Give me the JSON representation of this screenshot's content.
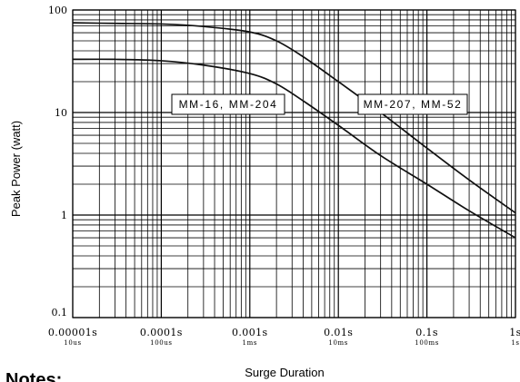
{
  "chart_data": {
    "type": "line",
    "xscale": "log",
    "yscale": "log",
    "xlim": [
      1e-05,
      1
    ],
    "ylim": [
      0.1,
      100
    ],
    "xlabel": "Surge Duration",
    "ylabel": "Peak Power (watt)",
    "grid": true,
    "x_ticks": [
      {
        "value": 1e-05,
        "label": "0.00001s",
        "sub": "10us"
      },
      {
        "value": 0.0001,
        "label": "0.0001s",
        "sub": "100us"
      },
      {
        "value": 0.001,
        "label": "0.001s",
        "sub": "1ms"
      },
      {
        "value": 0.01,
        "label": "0.01s",
        "sub": "10ms"
      },
      {
        "value": 0.1,
        "label": "0.1s",
        "sub": "100ms"
      },
      {
        "value": 1,
        "label": "1s",
        "sub": "1s"
      }
    ],
    "y_ticks": [
      {
        "value": 0.1,
        "label": "0.1"
      },
      {
        "value": 1,
        "label": "1"
      },
      {
        "value": 10,
        "label": "10"
      },
      {
        "value": 100,
        "label": "100"
      }
    ],
    "series": [
      {
        "name": "MM-207, MM-52",
        "x": [
          1e-05,
          3e-05,
          0.0001,
          0.0003,
          0.001,
          0.002,
          0.004,
          0.01,
          0.03,
          0.1,
          0.3,
          1
        ],
        "y": [
          75,
          74,
          73,
          69,
          61,
          50,
          35,
          20,
          10,
          4.5,
          2.2,
          1.05
        ]
      },
      {
        "name": "MM-16, MM-204",
        "x": [
          1e-05,
          3e-05,
          0.0001,
          0.0003,
          0.001,
          0.002,
          0.004,
          0.01,
          0.03,
          0.1,
          0.3,
          1
        ],
        "y": [
          33,
          33,
          32,
          29,
          24,
          19,
          13,
          7.5,
          3.8,
          2.0,
          1.1,
          0.6
        ]
      }
    ],
    "annotations": [
      {
        "text": "MM-16, MM-204",
        "series_index": 1
      },
      {
        "text": "MM-207, MM-52",
        "series_index": 0
      }
    ]
  },
  "footer": {
    "notes_label": "Notes:"
  }
}
